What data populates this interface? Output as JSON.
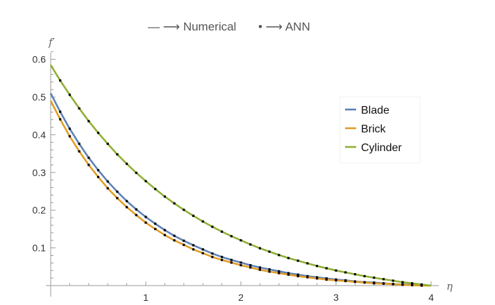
{
  "chart_data": {
    "type": "line",
    "title": "",
    "top_legend": {
      "numerical": "— ⟶ Numerical",
      "ann": "• ⟶ ANN"
    },
    "xlabel": "η",
    "ylabel": "f′",
    "xlim": [
      0,
      4
    ],
    "ylim": [
      0,
      0.6
    ],
    "xticks": [
      "1",
      "2",
      "3",
      "4"
    ],
    "yticks": [
      "0.1",
      "0.2",
      "0.3",
      "0.4",
      "0.5",
      "0.6"
    ],
    "legend_placement": "top-right",
    "x_start": 0,
    "x_step": 0.1,
    "ann_marker_range": [
      0.1,
      3.9
    ],
    "series": [
      {
        "name": "Blade",
        "color": "#5E81B5",
        "values": [
          0.51,
          0.461,
          0.416,
          0.376,
          0.339,
          0.306,
          0.276,
          0.249,
          0.224,
          0.202,
          0.182,
          0.164,
          0.147,
          0.132,
          0.119,
          0.107,
          0.096,
          0.085,
          0.076,
          0.068,
          0.061,
          0.054,
          0.048,
          0.043,
          0.038,
          0.033,
          0.029,
          0.025,
          0.022,
          0.019,
          0.016,
          0.014,
          0.011,
          0.009,
          0.008,
          0.006,
          0.004,
          0.003,
          0.002,
          0.001,
          0
        ]
      },
      {
        "name": "Brick",
        "color": "#E19C24",
        "values": [
          0.49,
          0.441,
          0.396,
          0.356,
          0.32,
          0.288,
          0.258,
          0.232,
          0.208,
          0.187,
          0.167,
          0.15,
          0.134,
          0.12,
          0.108,
          0.096,
          0.086,
          0.076,
          0.068,
          0.061,
          0.054,
          0.048,
          0.042,
          0.037,
          0.033,
          0.029,
          0.025,
          0.022,
          0.019,
          0.016,
          0.014,
          0.012,
          0.01,
          0.008,
          0.006,
          0.005,
          0.004,
          0.002,
          0.001,
          0,
          0
        ]
      },
      {
        "name": "Cylinder",
        "color": "#8FB032",
        "values": [
          0.585,
          0.544,
          0.506,
          0.47,
          0.436,
          0.405,
          0.376,
          0.348,
          0.323,
          0.299,
          0.277,
          0.256,
          0.236,
          0.218,
          0.201,
          0.185,
          0.17,
          0.156,
          0.143,
          0.131,
          0.12,
          0.109,
          0.099,
          0.09,
          0.081,
          0.073,
          0.066,
          0.059,
          0.052,
          0.046,
          0.04,
          0.035,
          0.03,
          0.025,
          0.021,
          0.017,
          0.013,
          0.009,
          0.006,
          0.003,
          0
        ]
      }
    ]
  }
}
